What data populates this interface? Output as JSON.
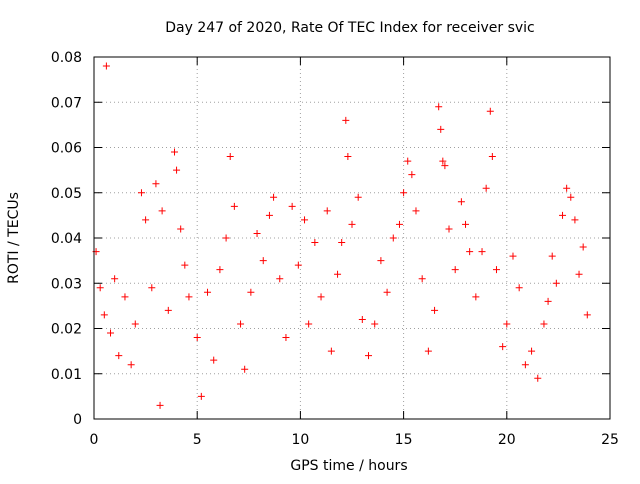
{
  "chart_data": {
    "type": "scatter",
    "title": "Day 247 of 2020, Rate Of TEC Index for receiver svic",
    "xlabel": "GPS time / hours",
    "ylabel": "ROTI / TECUs",
    "xlim": [
      0,
      25
    ],
    "ylim": [
      0,
      0.08
    ],
    "xticks": [
      "0",
      "5",
      "10",
      "15",
      "20",
      "25"
    ],
    "yticks": [
      "0",
      "0.01",
      "0.02",
      "0.03",
      "0.04",
      "0.05",
      "0.06",
      "0.07",
      "0.08"
    ],
    "grid": true,
    "marker": "+",
    "color": "#ff0000",
    "series": [
      {
        "values_note": "",
        "points": [
          [
            0.1,
            0.037
          ],
          [
            0.3,
            0.029
          ],
          [
            0.5,
            0.023
          ],
          [
            0.6,
            0.078
          ],
          [
            0.8,
            0.019
          ],
          [
            1.0,
            0.031
          ],
          [
            1.2,
            0.014
          ],
          [
            1.5,
            0.027
          ],
          [
            1.8,
            0.012
          ],
          [
            2.0,
            0.021
          ],
          [
            2.3,
            0.05
          ],
          [
            2.5,
            0.044
          ],
          [
            2.8,
            0.029
          ],
          [
            3.0,
            0.052
          ],
          [
            3.2,
            0.003
          ],
          [
            3.3,
            0.046
          ],
          [
            3.6,
            0.024
          ],
          [
            3.9,
            0.059
          ],
          [
            4.0,
            0.055
          ],
          [
            4.2,
            0.042
          ],
          [
            4.4,
            0.034
          ],
          [
            4.6,
            0.027
          ],
          [
            5.0,
            0.018
          ],
          [
            5.2,
            0.005
          ],
          [
            5.5,
            0.028
          ],
          [
            5.8,
            0.013
          ],
          [
            6.1,
            0.033
          ],
          [
            6.4,
            0.04
          ],
          [
            6.6,
            0.058
          ],
          [
            6.8,
            0.047
          ],
          [
            7.1,
            0.021
          ],
          [
            7.3,
            0.011
          ],
          [
            7.6,
            0.028
          ],
          [
            7.9,
            0.041
          ],
          [
            8.2,
            0.035
          ],
          [
            8.5,
            0.045
          ],
          [
            8.7,
            0.049
          ],
          [
            9.0,
            0.031
          ],
          [
            9.3,
            0.018
          ],
          [
            9.6,
            0.047
          ],
          [
            9.9,
            0.034
          ],
          [
            10.2,
            0.044
          ],
          [
            10.4,
            0.021
          ],
          [
            10.7,
            0.039
          ],
          [
            11.0,
            0.027
          ],
          [
            11.3,
            0.046
          ],
          [
            11.5,
            0.015
          ],
          [
            11.8,
            0.032
          ],
          [
            12.0,
            0.039
          ],
          [
            12.2,
            0.066
          ],
          [
            12.3,
            0.058
          ],
          [
            12.5,
            0.043
          ],
          [
            12.8,
            0.049
          ],
          [
            13.0,
            0.022
          ],
          [
            13.3,
            0.014
          ],
          [
            13.6,
            0.021
          ],
          [
            13.9,
            0.035
          ],
          [
            14.2,
            0.028
          ],
          [
            14.5,
            0.04
          ],
          [
            14.8,
            0.043
          ],
          [
            15.0,
            0.05
          ],
          [
            15.2,
            0.057
          ],
          [
            15.4,
            0.054
          ],
          [
            15.6,
            0.046
          ],
          [
            15.9,
            0.031
          ],
          [
            16.2,
            0.015
          ],
          [
            16.5,
            0.024
          ],
          [
            16.7,
            0.069
          ],
          [
            16.8,
            0.064
          ],
          [
            16.9,
            0.057
          ],
          [
            17.0,
            0.056
          ],
          [
            17.2,
            0.042
          ],
          [
            17.5,
            0.033
          ],
          [
            17.8,
            0.048
          ],
          [
            18.0,
            0.043
          ],
          [
            18.2,
            0.037
          ],
          [
            18.5,
            0.027
          ],
          [
            18.8,
            0.037
          ],
          [
            19.0,
            0.051
          ],
          [
            19.2,
            0.068
          ],
          [
            19.3,
            0.058
          ],
          [
            19.5,
            0.033
          ],
          [
            19.8,
            0.016
          ],
          [
            20.0,
            0.021
          ],
          [
            20.3,
            0.036
          ],
          [
            20.6,
            0.029
          ],
          [
            20.9,
            0.012
          ],
          [
            21.2,
            0.015
          ],
          [
            21.5,
            0.009
          ],
          [
            21.8,
            0.021
          ],
          [
            22.0,
            0.026
          ],
          [
            22.2,
            0.036
          ],
          [
            22.4,
            0.03
          ],
          [
            22.7,
            0.045
          ],
          [
            22.9,
            0.051
          ],
          [
            23.1,
            0.049
          ],
          [
            23.3,
            0.044
          ],
          [
            23.5,
            0.032
          ],
          [
            23.7,
            0.038
          ],
          [
            23.9,
            0.023
          ]
        ]
      }
    ]
  }
}
